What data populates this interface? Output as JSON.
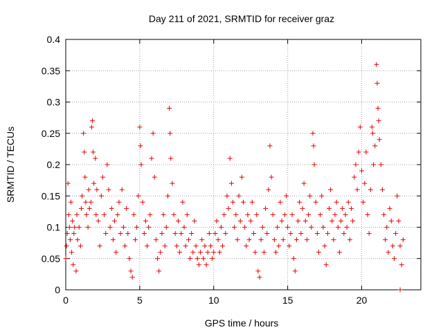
{
  "chart_data": {
    "type": "scatter",
    "title": "Day 211 of 2021, SRMTID for receiver graz",
    "xlabel": "GPS time / hours",
    "ylabel": "SRMTID / TECUs",
    "xlim": [
      0,
      24
    ],
    "ylim": [
      0,
      0.4
    ],
    "x_ticks": [
      0,
      5,
      10,
      15,
      20
    ],
    "x_tick_labels": [
      "0",
      "5",
      "10",
      "15",
      "20"
    ],
    "y_ticks": [
      0,
      0.05,
      0.1,
      0.15,
      0.2,
      0.25,
      0.3,
      0.35,
      0.4
    ],
    "y_tick_labels": [
      "0",
      "0.05",
      "0.1",
      "0.15",
      "0.2",
      "0.25",
      "0.3",
      "0.35",
      "0.4"
    ],
    "grid": true,
    "marker": "+",
    "color": "#e60000",
    "series": [
      {
        "name": "SRMTID",
        "points": [
          [
            0.0,
            0.05
          ],
          [
            0.05,
            0.07
          ],
          [
            0.1,
            0.09
          ],
          [
            0.15,
            0.17
          ],
          [
            0.2,
            0.12
          ],
          [
            0.25,
            0.1
          ],
          [
            0.3,
            0.08
          ],
          [
            0.35,
            0.14
          ],
          [
            0.4,
            0.06
          ],
          [
            0.45,
            0.11
          ],
          [
            0.5,
            0.04
          ],
          [
            0.55,
            0.09
          ],
          [
            0.6,
            0.1
          ],
          [
            0.7,
            0.03
          ],
          [
            0.75,
            0.12
          ],
          [
            0.8,
            0.08
          ],
          [
            0.9,
            0.1
          ],
          [
            1.0,
            0.07
          ],
          [
            1.05,
            0.13
          ],
          [
            1.1,
            0.15
          ],
          [
            1.2,
            0.25
          ],
          [
            1.25,
            0.22
          ],
          [
            1.3,
            0.18
          ],
          [
            1.35,
            0.14
          ],
          [
            1.4,
            0.12
          ],
          [
            1.5,
            0.1
          ],
          [
            1.55,
            0.16
          ],
          [
            1.6,
            0.13
          ],
          [
            1.7,
            0.14
          ],
          [
            1.75,
            0.26
          ],
          [
            1.8,
            0.27
          ],
          [
            1.85,
            0.22
          ],
          [
            1.9,
            0.17
          ],
          [
            2.0,
            0.21
          ],
          [
            2.05,
            0.12
          ],
          [
            2.1,
            0.16
          ],
          [
            2.2,
            0.11
          ],
          [
            2.3,
            0.07
          ],
          [
            2.4,
            0.15
          ],
          [
            2.5,
            0.18
          ],
          [
            2.6,
            0.12
          ],
          [
            2.7,
            0.09
          ],
          [
            2.8,
            0.2
          ],
          [
            2.9,
            0.16
          ],
          [
            3.0,
            0.1
          ],
          [
            3.1,
            0.13
          ],
          [
            3.2,
            0.08
          ],
          [
            3.3,
            0.11
          ],
          [
            3.4,
            0.06
          ],
          [
            3.5,
            0.12
          ],
          [
            3.6,
            0.14
          ],
          [
            3.7,
            0.09
          ],
          [
            3.8,
            0.16
          ],
          [
            3.9,
            0.1
          ],
          [
            4.0,
            0.07
          ],
          [
            4.1,
            0.13
          ],
          [
            4.2,
            0.09
          ],
          [
            4.3,
            0.05
          ],
          [
            4.4,
            0.03
          ],
          [
            4.5,
            0.02
          ],
          [
            4.6,
            0.12
          ],
          [
            4.7,
            0.08
          ],
          [
            4.8,
            0.1
          ],
          [
            4.9,
            0.15
          ],
          [
            5.0,
            0.26
          ],
          [
            5.05,
            0.23
          ],
          [
            5.1,
            0.2
          ],
          [
            5.2,
            0.14
          ],
          [
            5.3,
            0.09
          ],
          [
            5.4,
            0.11
          ],
          [
            5.5,
            0.07
          ],
          [
            5.6,
            0.1
          ],
          [
            5.7,
            0.12
          ],
          [
            5.8,
            0.21
          ],
          [
            5.9,
            0.25
          ],
          [
            6.0,
            0.18
          ],
          [
            6.1,
            0.08
          ],
          [
            6.2,
            0.05
          ],
          [
            6.3,
            0.03
          ],
          [
            6.4,
            0.06
          ],
          [
            6.5,
            0.09
          ],
          [
            6.6,
            0.12
          ],
          [
            6.7,
            0.07
          ],
          [
            6.8,
            0.1
          ],
          [
            6.9,
            0.15
          ],
          [
            7.0,
            0.29
          ],
          [
            7.05,
            0.25
          ],
          [
            7.1,
            0.21
          ],
          [
            7.2,
            0.17
          ],
          [
            7.3,
            0.12
          ],
          [
            7.4,
            0.09
          ],
          [
            7.5,
            0.07
          ],
          [
            7.6,
            0.11
          ],
          [
            7.7,
            0.06
          ],
          [
            7.8,
            0.09
          ],
          [
            7.9,
            0.14
          ],
          [
            8.0,
            0.1
          ],
          [
            8.1,
            0.07
          ],
          [
            8.2,
            0.12
          ],
          [
            8.3,
            0.08
          ],
          [
            8.4,
            0.05
          ],
          [
            8.5,
            0.09
          ],
          [
            8.6,
            0.06
          ],
          [
            8.7,
            0.11
          ],
          [
            8.8,
            0.07
          ],
          [
            8.9,
            0.05
          ],
          [
            9.0,
            0.04
          ],
          [
            9.1,
            0.06
          ],
          [
            9.2,
            0.08
          ],
          [
            9.3,
            0.05
          ],
          [
            9.4,
            0.07
          ],
          [
            9.5,
            0.04
          ],
          [
            9.6,
            0.06
          ],
          [
            9.7,
            0.09
          ],
          [
            9.8,
            0.07
          ],
          [
            9.9,
            0.05
          ],
          [
            10.0,
            0.06
          ],
          [
            10.1,
            0.09
          ],
          [
            10.2,
            0.11
          ],
          [
            10.3,
            0.08
          ],
          [
            10.4,
            0.06
          ],
          [
            10.5,
            0.1
          ],
          [
            10.6,
            0.07
          ],
          [
            10.7,
            0.12
          ],
          [
            10.8,
            0.09
          ],
          [
            10.9,
            0.15
          ],
          [
            11.0,
            0.13
          ],
          [
            11.1,
            0.21
          ],
          [
            11.2,
            0.17
          ],
          [
            11.3,
            0.14
          ],
          [
            11.4,
            0.1
          ],
          [
            11.5,
            0.12
          ],
          [
            11.6,
            0.08
          ],
          [
            11.7,
            0.15
          ],
          [
            11.8,
            0.11
          ],
          [
            11.9,
            0.18
          ],
          [
            12.0,
            0.14
          ],
          [
            12.1,
            0.1
          ],
          [
            12.2,
            0.07
          ],
          [
            12.3,
            0.12
          ],
          [
            12.4,
            0.08
          ],
          [
            12.5,
            0.11
          ],
          [
            12.6,
            0.14
          ],
          [
            12.7,
            0.09
          ],
          [
            12.8,
            0.06
          ],
          [
            12.9,
            0.12
          ],
          [
            13.0,
            0.03
          ],
          [
            13.1,
            0.02
          ],
          [
            13.2,
            0.08
          ],
          [
            13.3,
            0.1
          ],
          [
            13.4,
            0.06
          ],
          [
            13.5,
            0.13
          ],
          [
            13.6,
            0.09
          ],
          [
            13.7,
            0.16
          ],
          [
            13.8,
            0.23
          ],
          [
            13.9,
            0.18
          ],
          [
            14.0,
            0.12
          ],
          [
            14.1,
            0.08
          ],
          [
            14.2,
            0.06
          ],
          [
            14.3,
            0.1
          ],
          [
            14.4,
            0.07
          ],
          [
            14.5,
            0.14
          ],
          [
            14.6,
            0.11
          ],
          [
            14.7,
            0.08
          ],
          [
            14.8,
            0.12
          ],
          [
            14.9,
            0.15
          ],
          [
            15.0,
            0.1
          ],
          [
            15.1,
            0.07
          ],
          [
            15.2,
            0.09
          ],
          [
            15.3,
            0.12
          ],
          [
            15.4,
            0.05
          ],
          [
            15.5,
            0.03
          ],
          [
            15.6,
            0.08
          ],
          [
            15.7,
            0.11
          ],
          [
            15.8,
            0.14
          ],
          [
            15.9,
            0.09
          ],
          [
            16.0,
            0.13
          ],
          [
            16.1,
            0.17
          ],
          [
            16.2,
            0.11
          ],
          [
            16.3,
            0.08
          ],
          [
            16.4,
            0.12
          ],
          [
            16.5,
            0.15
          ],
          [
            16.6,
            0.1
          ],
          [
            16.7,
            0.25
          ],
          [
            16.75,
            0.23
          ],
          [
            16.8,
            0.2
          ],
          [
            16.9,
            0.14
          ],
          [
            17.0,
            0.09
          ],
          [
            17.1,
            0.06
          ],
          [
            17.2,
            0.12
          ],
          [
            17.3,
            0.15
          ],
          [
            17.4,
            0.1
          ],
          [
            17.5,
            0.07
          ],
          [
            17.6,
            0.04
          ],
          [
            17.7,
            0.09
          ],
          [
            17.8,
            0.13
          ],
          [
            17.9,
            0.16
          ],
          [
            18.0,
            0.11
          ],
          [
            18.1,
            0.08
          ],
          [
            18.2,
            0.12
          ],
          [
            18.3,
            0.14
          ],
          [
            18.4,
            0.1
          ],
          [
            18.5,
            0.06
          ],
          [
            18.6,
            0.11
          ],
          [
            18.7,
            0.13
          ],
          [
            18.8,
            0.09
          ],
          [
            18.9,
            0.12
          ],
          [
            19.0,
            0.1
          ],
          [
            19.1,
            0.14
          ],
          [
            19.2,
            0.08
          ],
          [
            19.3,
            0.13
          ],
          [
            19.4,
            0.11
          ],
          [
            19.5,
            0.18
          ],
          [
            19.6,
            0.2
          ],
          [
            19.7,
            0.16
          ],
          [
            19.8,
            0.22
          ],
          [
            19.9,
            0.26
          ],
          [
            20.0,
            0.19
          ],
          [
            20.1,
            0.14
          ],
          [
            20.2,
            0.17
          ],
          [
            20.3,
            0.22
          ],
          [
            20.4,
            0.12
          ],
          [
            20.5,
            0.09
          ],
          [
            20.6,
            0.16
          ],
          [
            20.7,
            0.26
          ],
          [
            20.75,
            0.25
          ],
          [
            20.8,
            0.2
          ],
          [
            20.9,
            0.23
          ],
          [
            21.0,
            0.36
          ],
          [
            21.05,
            0.33
          ],
          [
            21.1,
            0.29
          ],
          [
            21.15,
            0.27
          ],
          [
            21.2,
            0.24
          ],
          [
            21.3,
            0.2
          ],
          [
            21.4,
            0.16
          ],
          [
            21.5,
            0.12
          ],
          [
            21.6,
            0.08
          ],
          [
            21.7,
            0.1
          ],
          [
            21.8,
            0.06
          ],
          [
            21.9,
            0.13
          ],
          [
            22.0,
            0.11
          ],
          [
            22.1,
            0.07
          ],
          [
            22.2,
            0.05
          ],
          [
            22.3,
            0.09
          ],
          [
            22.4,
            0.15
          ],
          [
            22.5,
            0.11
          ],
          [
            22.6,
            0.07
          ],
          [
            22.7,
            0.04
          ],
          [
            22.8,
            0.08
          ],
          [
            22.6,
            0.0
          ]
        ]
      }
    ]
  }
}
